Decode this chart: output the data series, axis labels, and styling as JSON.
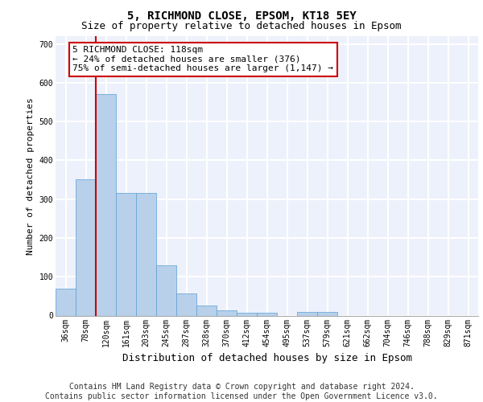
{
  "title1": "5, RICHMOND CLOSE, EPSOM, KT18 5EY",
  "title2": "Size of property relative to detached houses in Epsom",
  "xlabel": "Distribution of detached houses by size in Epsom",
  "ylabel": "Number of detached properties",
  "bar_labels": [
    "36sqm",
    "78sqm",
    "120sqm",
    "161sqm",
    "203sqm",
    "245sqm",
    "287sqm",
    "328sqm",
    "370sqm",
    "412sqm",
    "454sqm",
    "495sqm",
    "537sqm",
    "579sqm",
    "621sqm",
    "662sqm",
    "704sqm",
    "746sqm",
    "788sqm",
    "829sqm",
    "871sqm"
  ],
  "bar_values": [
    70,
    352,
    570,
    315,
    315,
    130,
    57,
    25,
    14,
    7,
    7,
    0,
    10,
    10,
    0,
    0,
    0,
    0,
    0,
    0,
    0
  ],
  "bar_color": "#b8d0ea",
  "bar_edge_color": "#5a9fd4",
  "ylim": [
    0,
    720
  ],
  "yticks": [
    0,
    100,
    200,
    300,
    400,
    500,
    600,
    700
  ],
  "vline_color": "#cc0000",
  "annotation_text": "5 RICHMOND CLOSE: 118sqm\n← 24% of detached houses are smaller (376)\n75% of semi-detached houses are larger (1,147) →",
  "annotation_box_edgecolor": "#cc0000",
  "footer1": "Contains HM Land Registry data © Crown copyright and database right 2024.",
  "footer2": "Contains public sector information licensed under the Open Government Licence v3.0.",
  "bg_color": "#edf1fb",
  "grid_color": "#ffffff",
  "title1_fontsize": 10,
  "title2_fontsize": 9,
  "annotation_fontsize": 8,
  "footer_fontsize": 7,
  "ylabel_fontsize": 8,
  "xlabel_fontsize": 9,
  "tick_fontsize": 7
}
